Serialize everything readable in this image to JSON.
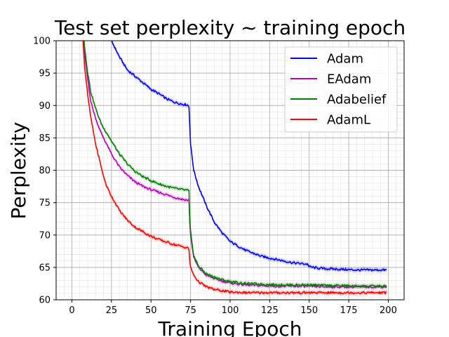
{
  "chart_data": {
    "type": "line",
    "title": "Test set perplexity ~ training epoch",
    "xlabel": "Training Epoch",
    "ylabel": "Perplexity",
    "xlim": [
      -10,
      210
    ],
    "ylim": [
      60,
      100
    ],
    "xticks": [
      "0",
      "25",
      "50",
      "75",
      "100",
      "125",
      "150",
      "175",
      "200"
    ],
    "yticks": [
      "60",
      "65",
      "70",
      "75",
      "80",
      "85",
      "90",
      "95",
      "100"
    ],
    "grid": true,
    "legend_position": "top-right",
    "series": [
      {
        "name": "Adam",
        "color": "#0000ff",
        "x": [
          22,
          25,
          30,
          35,
          40,
          45,
          50,
          55,
          60,
          65,
          70,
          73,
          74,
          74.5,
          75,
          77,
          80,
          85,
          90,
          95,
          100,
          110,
          120,
          130,
          140,
          149,
          150,
          155,
          160,
          170,
          180,
          190,
          199
        ],
        "values": [
          102,
          100,
          97.5,
          95.5,
          94.5,
          93.5,
          92.5,
          91.8,
          91,
          90.5,
          90.2,
          90.1,
          89.8,
          87,
          84,
          80,
          77.5,
          74.5,
          72,
          70.3,
          69,
          67.6,
          66.7,
          66.2,
          65.7,
          65.5,
          65.1,
          64.9,
          64.8,
          64.7,
          64.6,
          64.6,
          64.6
        ]
      },
      {
        "name": "EAdam",
        "color": "#bf00bf",
        "x": [
          7,
          8,
          10,
          12,
          15,
          18,
          20,
          22,
          25,
          30,
          35,
          40,
          45,
          50,
          55,
          60,
          65,
          70,
          73,
          74,
          74.5,
          75,
          77,
          80,
          85,
          90,
          95,
          100,
          110,
          120,
          130,
          140,
          150,
          160,
          170,
          180,
          190,
          199
        ],
        "values": [
          101,
          98,
          94,
          90.5,
          88,
          86,
          85,
          84,
          82.5,
          80.5,
          79.2,
          78.2,
          77.5,
          77,
          76.6,
          76.2,
          75.8,
          75.5,
          75.4,
          75.3,
          72,
          70,
          66.5,
          65,
          63.8,
          63.3,
          62.9,
          62.6,
          62.3,
          62.2,
          62.1,
          62.1,
          62.1,
          62.0,
          62.0,
          62.0,
          62.0,
          62.0
        ]
      },
      {
        "name": "Adabelief",
        "color": "#008000",
        "x": [
          7,
          8,
          10,
          12,
          15,
          18,
          20,
          22,
          25,
          30,
          35,
          40,
          45,
          50,
          55,
          60,
          65,
          70,
          73,
          74,
          74.5,
          75,
          77,
          80,
          85,
          90,
          95,
          100,
          110,
          120,
          130,
          140,
          150,
          160,
          170,
          180,
          190,
          199
        ],
        "values": [
          102,
          99,
          95,
          92,
          89.5,
          87.5,
          86.5,
          85.8,
          84.5,
          82.5,
          81,
          79.8,
          79,
          78.4,
          77.9,
          77.5,
          77.2,
          77,
          76.9,
          76.8,
          72,
          70.5,
          66.8,
          65.2,
          64,
          63.5,
          63.1,
          62.8,
          62.5,
          62.4,
          62.3,
          62.3,
          62.3,
          62.2,
          62.2,
          62.1,
          62.1,
          62.1
        ]
      },
      {
        "name": "AdamL",
        "color": "#ff0000",
        "x": [
          7,
          8,
          10,
          12,
          15,
          18,
          20,
          22,
          25,
          30,
          35,
          40,
          45,
          50,
          55,
          60,
          65,
          70,
          73,
          74,
          74.5,
          75,
          77,
          80,
          85,
          90,
          95,
          100,
          110,
          120,
          130,
          140,
          150,
          160,
          170,
          180,
          190,
          199
        ],
        "values": [
          100,
          96,
          91.5,
          88,
          84,
          81,
          79,
          77.5,
          76,
          73.8,
          72.3,
          71.2,
          70.5,
          69.8,
          69.3,
          68.9,
          68.5,
          68.2,
          68,
          67.8,
          66,
          65,
          63.8,
          62.8,
          62,
          61.6,
          61.4,
          61.2,
          61.1,
          61.1,
          61.1,
          61.1,
          61.1,
          61.1,
          61.1,
          61.1,
          61.1,
          61.1
        ]
      }
    ]
  }
}
